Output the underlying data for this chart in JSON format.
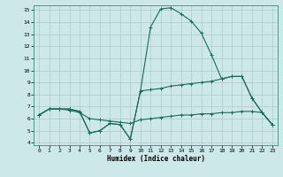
{
  "xlabel": "Humidex (Indice chaleur)",
  "background_color": "#cce8e8",
  "line_color": "#1a6b5a",
  "xlim": [
    -0.5,
    23.5
  ],
  "ylim": [
    3.8,
    15.4
  ],
  "yticks": [
    4,
    5,
    6,
    7,
    8,
    9,
    10,
    11,
    12,
    13,
    14,
    15
  ],
  "xticks": [
    0,
    1,
    2,
    3,
    4,
    5,
    6,
    7,
    8,
    9,
    10,
    11,
    12,
    13,
    14,
    15,
    16,
    17,
    18,
    19,
    20,
    21,
    22,
    23
  ],
  "line_min_x": [
    0,
    1,
    2,
    3,
    4,
    5,
    6,
    7,
    8,
    9,
    10,
    11,
    12,
    13,
    14,
    15,
    16,
    17,
    18,
    19,
    20,
    21,
    22,
    23
  ],
  "line_min_y": [
    6.3,
    6.8,
    6.8,
    6.7,
    6.5,
    6.0,
    5.9,
    5.8,
    5.7,
    5.6,
    5.9,
    6.0,
    6.1,
    6.2,
    6.3,
    6.3,
    6.4,
    6.4,
    6.5,
    6.5,
    6.6,
    6.6,
    6.5,
    5.5
  ],
  "line_med_x": [
    0,
    1,
    2,
    3,
    4,
    5,
    6,
    7,
    8,
    9,
    10,
    11,
    12,
    13,
    14,
    15,
    16,
    17,
    18,
    19,
    20,
    21,
    22,
    23
  ],
  "line_med_y": [
    6.3,
    6.8,
    6.8,
    6.8,
    6.6,
    4.8,
    5.0,
    5.6,
    5.5,
    4.3,
    8.3,
    8.4,
    8.5,
    8.7,
    8.8,
    8.9,
    9.0,
    9.1,
    9.3,
    9.5,
    9.5,
    7.7,
    6.5,
    5.5
  ],
  "line_max_x": [
    0,
    1,
    2,
    3,
    4,
    5,
    6,
    7,
    8,
    9,
    10,
    11,
    12,
    13,
    14,
    15,
    16,
    17,
    18,
    19,
    20,
    21,
    22,
    23
  ],
  "line_max_y": [
    6.3,
    6.8,
    6.8,
    6.8,
    6.6,
    4.8,
    5.0,
    5.6,
    5.5,
    4.3,
    8.3,
    13.6,
    15.1,
    15.2,
    14.7,
    14.1,
    13.1,
    11.3,
    9.3,
    9.5,
    9.5,
    7.7,
    6.5,
    5.5
  ]
}
